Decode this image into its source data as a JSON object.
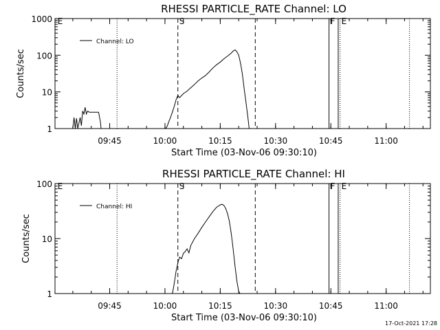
{
  "footer_timestamp": "17-Oct-2021 17:28",
  "chart_data": [
    {
      "type": "line",
      "title": "RHESSI PARTICLE_RATE Channel: LO",
      "xlabel": "Start Time (03-Nov-06 09:30:10)",
      "ylabel": "Counts/sec",
      "yscale": "log",
      "xlim": [
        "09:30:10",
        "11:12:00"
      ],
      "ylim": [
        1,
        1000
      ],
      "x_ticks": [
        "09:45",
        "10:00",
        "10:15",
        "10:30",
        "10:45",
        "11:00"
      ],
      "y_ticks": [
        "1",
        "10",
        "100",
        "1000"
      ],
      "legend": "top-left",
      "series": [
        {
          "name": "Channel: LO",
          "x": [
            "09:35:00",
            "09:35:20",
            "09:35:40",
            "09:36:00",
            "09:36:20",
            "09:37:00",
            "09:37:20",
            "09:37:40",
            "09:38:00",
            "09:38:20",
            "09:38:40",
            "09:39:00",
            "09:39:30",
            "09:40:00",
            "09:41:00",
            "09:42:00",
            "09:42:30",
            "09:42:40",
            "10:00:00",
            "10:00:20",
            "10:00:40",
            "10:01:00",
            "10:01:30",
            "10:02:00",
            "10:02:30",
            "10:03:00",
            "10:03:30",
            "10:04:00",
            "10:05:00",
            "10:06:00",
            "10:07:00",
            "10:08:00",
            "10:09:00",
            "10:10:00",
            "10:11:00",
            "10:12:00",
            "10:13:00",
            "10:14:00",
            "10:15:00",
            "10:16:00",
            "10:17:00",
            "10:18:00",
            "10:18:30",
            "10:19:00",
            "10:19:30",
            "10:20:00",
            "10:20:30",
            "10:21:00",
            "10:21:30",
            "10:22:00",
            "10:22:30",
            "10:22:50"
          ],
          "y": [
            1,
            2,
            1,
            1.9,
            1,
            2,
            1.2,
            3,
            2.5,
            3.8,
            2.5,
            3,
            2.8,
            2.8,
            2.8,
            2.8,
            1.5,
            1,
            1,
            1.05,
            1.2,
            1.5,
            2,
            2.8,
            4,
            6,
            8,
            7,
            9,
            10.5,
            13,
            16,
            20,
            24,
            28,
            35,
            45,
            55,
            65,
            80,
            95,
            115,
            130,
            140,
            125,
            100,
            60,
            30,
            12,
            5,
            2,
            1
          ]
        }
      ],
      "markers": [
        {
          "label": "E",
          "time": "09:30:30",
          "style": "none"
        },
        {
          "label": "",
          "time": "09:47:00",
          "style": "dotted"
        },
        {
          "label": "S",
          "time": "10:03:30",
          "style": "dashed"
        },
        {
          "label": "",
          "time": "10:24:30",
          "style": "dashed"
        },
        {
          "label": "F",
          "time": "10:44:30",
          "style": "solid"
        },
        {
          "label": "",
          "time": "10:47:00",
          "style": "solid"
        },
        {
          "label": "E",
          "time": "10:47:30",
          "style": "dotted"
        },
        {
          "label": "",
          "time": "11:06:20",
          "style": "dotted"
        }
      ]
    },
    {
      "type": "line",
      "title": "RHESSI PARTICLE_RATE Channel: HI",
      "xlabel": "Start Time (03-Nov-06 09:30:10)",
      "ylabel": "Counts/sec",
      "yscale": "log",
      "xlim": [
        "09:30:10",
        "11:12:00"
      ],
      "ylim": [
        1,
        100
      ],
      "x_ticks": [
        "09:45",
        "10:00",
        "10:15",
        "10:30",
        "10:45",
        "11:00"
      ],
      "y_ticks": [
        "1",
        "10",
        "100"
      ],
      "legend": "top-left",
      "series": [
        {
          "name": "Channel: HI",
          "x": [
            "10:02:00",
            "10:02:20",
            "10:02:40",
            "10:03:00",
            "10:03:20",
            "10:03:40",
            "10:04:00",
            "10:04:30",
            "10:05:00",
            "10:05:30",
            "10:06:00",
            "10:06:30",
            "10:07:00",
            "10:08:00",
            "10:09:00",
            "10:10:00",
            "10:11:00",
            "10:12:00",
            "10:13:00",
            "10:14:00",
            "10:15:00",
            "10:15:30",
            "10:16:00",
            "10:16:30",
            "10:17:00",
            "10:17:30",
            "10:18:00",
            "10:18:30",
            "10:19:00",
            "10:19:30",
            "10:20:00",
            "10:20:20"
          ],
          "y": [
            1,
            1.3,
            1.8,
            2.5,
            3.2,
            4,
            4.6,
            4.3,
            5.4,
            5.8,
            6.5,
            5.5,
            7.5,
            10,
            12.5,
            16,
            20,
            25,
            31,
            37,
            41,
            42,
            40,
            35,
            28,
            20,
            12,
            6.5,
            3.2,
            1.7,
            1.1,
            1
          ]
        }
      ],
      "markers": [
        {
          "label": "E",
          "time": "09:30:30",
          "style": "none"
        },
        {
          "label": "",
          "time": "09:47:00",
          "style": "dotted"
        },
        {
          "label": "S",
          "time": "10:03:30",
          "style": "dashed"
        },
        {
          "label": "",
          "time": "10:24:30",
          "style": "dashed"
        },
        {
          "label": "F",
          "time": "10:44:30",
          "style": "solid"
        },
        {
          "label": "",
          "time": "10:47:00",
          "style": "solid"
        },
        {
          "label": "E",
          "time": "10:47:30",
          "style": "dotted"
        },
        {
          "label": "",
          "time": "11:06:20",
          "style": "dotted"
        }
      ]
    }
  ]
}
